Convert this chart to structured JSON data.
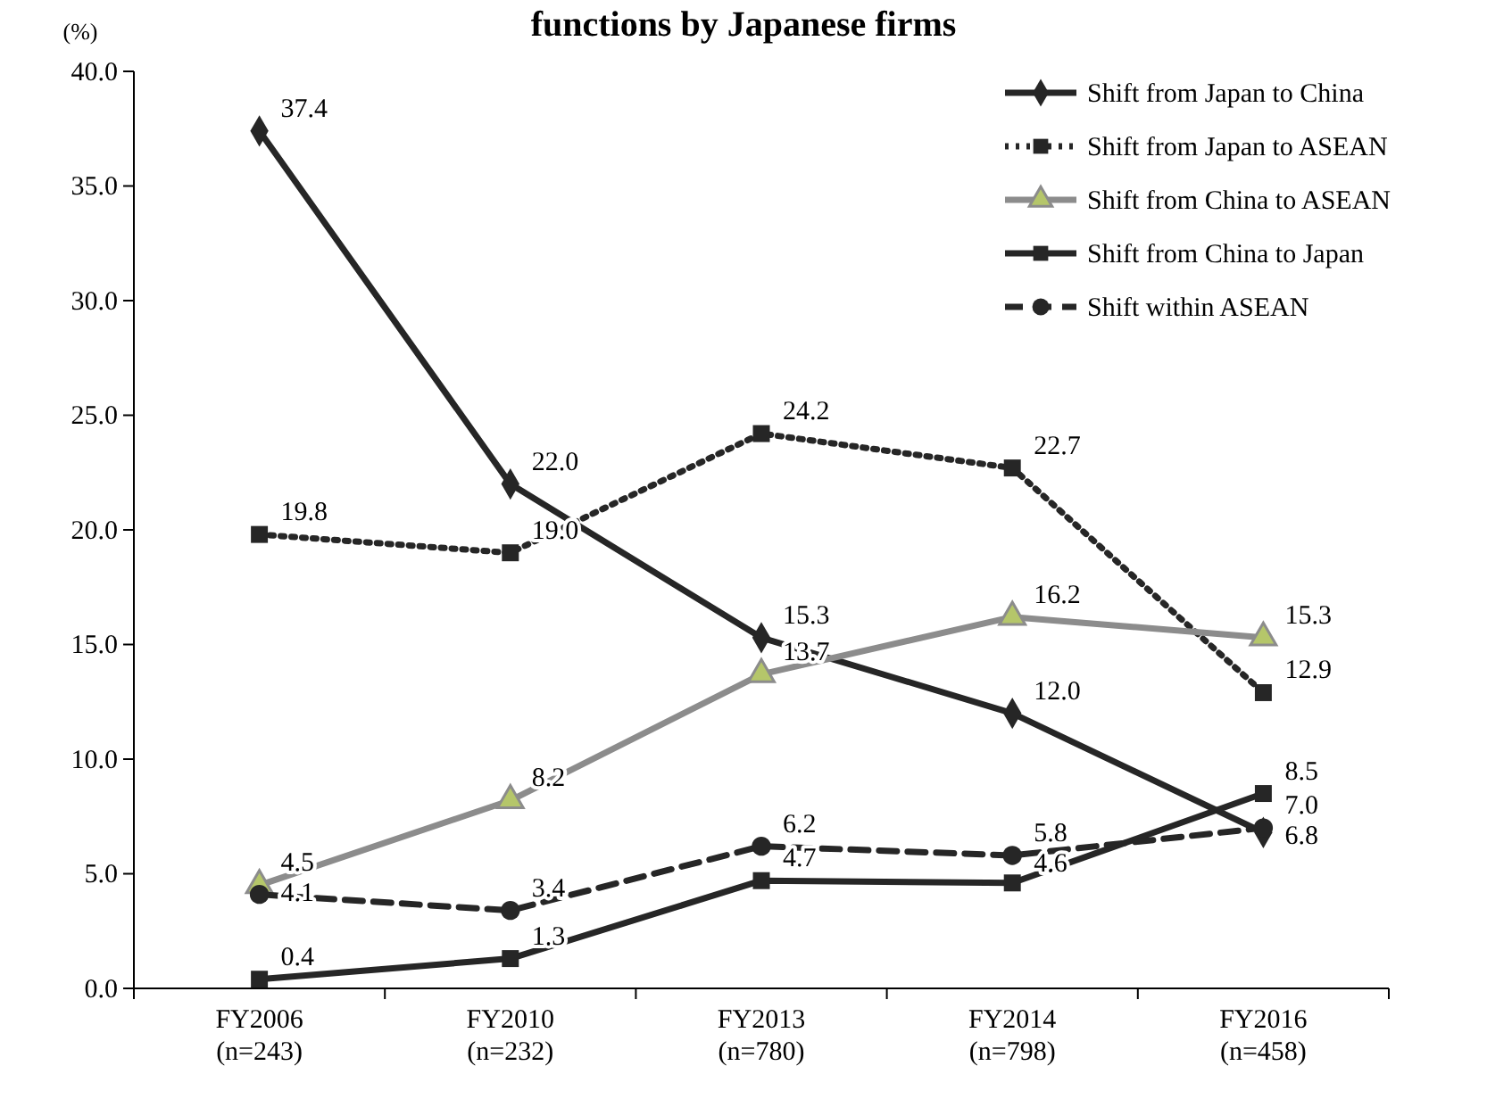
{
  "chart_data": {
    "type": "line",
    "title": "functions by Japanese firms",
    "ylabel": "(%)",
    "categories": [
      "FY2006\n(n=243)",
      "FY2010\n(n=232)",
      "FY2013\n(n=780)",
      "FY2014\n(n=798)",
      "FY2016\n(n=458)"
    ],
    "ylim": [
      0,
      40
    ],
    "yticks": [
      {
        "value": 0,
        "label": "0.0"
      },
      {
        "value": 5,
        "label": "5.0"
      },
      {
        "value": 10,
        "label": "10.0"
      },
      {
        "value": 15,
        "label": "15.0"
      },
      {
        "value": 20,
        "label": "20.0"
      },
      {
        "value": 25,
        "label": "25.0"
      },
      {
        "value": 30,
        "label": "30.0"
      },
      {
        "value": 35,
        "label": "35.0"
      },
      {
        "value": 40,
        "label": "40.0"
      }
    ],
    "grid": false,
    "legend": "top right",
    "series": [
      {
        "name": "Shift from Japan to China",
        "color": "#262626",
        "marker": "diamond",
        "line_style": "solid",
        "values": [
          37.4,
          22.0,
          15.3,
          12.0,
          6.8
        ],
        "value_labels": [
          "37.4",
          "22.0",
          "15.3",
          "12.0",
          "6.8"
        ]
      },
      {
        "name": "Shift from Japan to ASEAN",
        "color": "#262626",
        "marker": "square",
        "line_style": "dotted",
        "values": [
          19.8,
          19.0,
          24.2,
          22.7,
          12.9
        ],
        "value_labels": [
          "19.8",
          "19.0",
          "24.2",
          "22.7",
          "12.9"
        ]
      },
      {
        "name": "Shift from China to ASEAN",
        "color": "#8c8c8c",
        "marker": "triangle",
        "line_style": "solid",
        "values": [
          4.5,
          8.2,
          13.7,
          16.2,
          15.3
        ],
        "value_labels": [
          "4.5",
          "8.2",
          "13.7",
          "16.2",
          "15.3"
        ]
      },
      {
        "name": "Shift from China to Japan",
        "color": "#262626",
        "marker": "square",
        "line_style": "solid",
        "values": [
          0.4,
          1.3,
          4.7,
          4.6,
          8.5
        ],
        "value_labels": [
          "0.4",
          "1.3",
          "4.7",
          "4.6",
          "8.5"
        ]
      },
      {
        "name": "Shift within ASEAN",
        "color": "#262626",
        "marker": "circle",
        "line_style": "dashed",
        "values": [
          4.1,
          3.4,
          6.2,
          5.8,
          7.0
        ],
        "value_labels": [
          "4.1",
          "3.4",
          "6.2",
          "5.8",
          "7.0"
        ]
      }
    ]
  }
}
